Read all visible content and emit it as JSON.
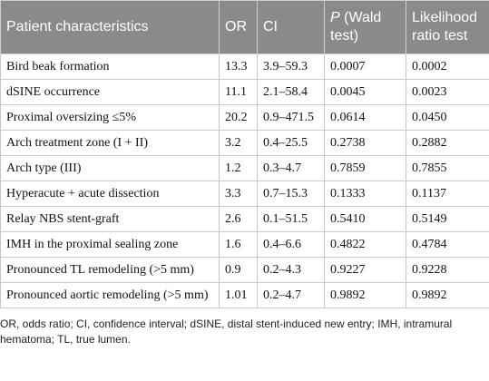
{
  "table": {
    "header": [
      "Patient characteristics",
      "OR",
      "CI",
      [
        "P",
        "(Wald test)"
      ],
      "Likelihood ratio test"
    ],
    "rows": [
      [
        "Bird beak formation",
        "13.3",
        "3.9–59.3",
        "0.0007",
        "0.0002"
      ],
      [
        "dSINE occurrence",
        "11.1",
        "2.1–58.4",
        "0.0045",
        "0.0023"
      ],
      [
        "Proximal oversizing ≤5%",
        "20.2",
        "0.9–471.5",
        "0.0614",
        "0.0450"
      ],
      [
        "Arch treatment zone (I + II)",
        "3.2",
        "0.4–25.5",
        "0.2738",
        "0.2882"
      ],
      [
        "Arch type (III)",
        "1.2",
        "0.3–4.7",
        "0.7859",
        "0.7855"
      ],
      [
        "Hyperacute + acute dissection",
        "3.3",
        "0.7–15.3",
        "0.1333",
        "0.1137"
      ],
      [
        "Relay NBS stent-graft",
        "2.6",
        "0.1–51.5",
        "0.5410",
        "0.5149"
      ],
      [
        "IMH in the proximal sealing zone",
        "1.6",
        "0.4–6.6",
        "0.4822",
        "0.4784"
      ],
      [
        "Pronounced TL remodeling (>5 mm)",
        "0.9",
        "0.2–4.3",
        "0.9227",
        "0.9228"
      ],
      [
        "Pronounced aortic remodeling (>5 mm)",
        "1.01",
        "0.2–4.7",
        "0.9892",
        "0.9892"
      ]
    ]
  },
  "footnote": "OR, odds ratio; CI, confidence interval; dSINE, distal stent-induced new entry; IMH, intramural hematoma; TL, true lumen."
}
